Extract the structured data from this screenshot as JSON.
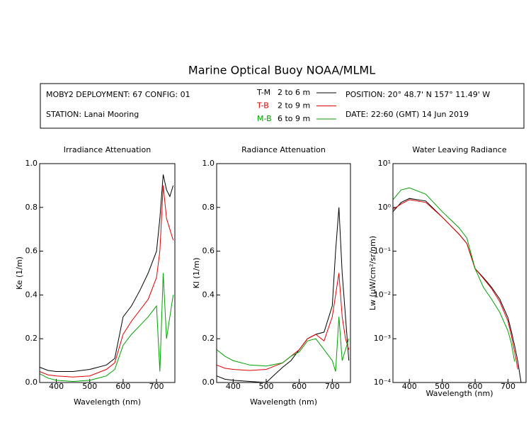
{
  "title": "Marine Optical Buoy NOAA/MLML",
  "header": {
    "deployment": "MOBY2 DEPLOYMENT: 67 CONFIG: 01",
    "station": "STATION: Lanai Mooring",
    "position": "POSITION: 20° 48.7' N   157° 11.49' W",
    "date": "DATE: 22:60 (GMT) 14 Jun 2019",
    "legend_ranges": [
      "2 to 6  m",
      "2 to 9  m",
      "6 to 9  m"
    ]
  },
  "chart_data": [
    {
      "type": "line",
      "title": "Irradiance Attenuation",
      "x_label": "Wavelength (nm)",
      "y_label": "Ke  (1/m)",
      "x": [
        350,
        375,
        400,
        450,
        500,
        550,
        575,
        600,
        625,
        650,
        675,
        700,
        710,
        720,
        730,
        740,
        750
      ],
      "xlim": [
        350,
        755
      ],
      "xticks": [
        400,
        500,
        600,
        700
      ],
      "ylim": [
        0,
        1
      ],
      "yticks": [
        {
          "value": 0,
          "label": "0.0"
        },
        0.2,
        0.4,
        0.6,
        0.8,
        {
          "value": 1,
          "label": "1.0"
        }
      ],
      "series": [
        {
          "name": "T-M",
          "color": "#000000",
          "values": [
            0.07,
            0.055,
            0.05,
            0.05,
            0.06,
            0.08,
            0.11,
            0.3,
            0.35,
            0.42,
            0.5,
            0.6,
            0.75,
            0.95,
            0.88,
            0.85,
            0.9
          ]
        },
        {
          "name": "T-B",
          "color": "#e00000",
          "values": [
            0.05,
            0.035,
            0.03,
            0.025,
            0.03,
            0.06,
            0.09,
            0.22,
            0.28,
            0.33,
            0.38,
            0.48,
            0.6,
            0.9,
            0.75,
            0.7,
            0.65
          ]
        },
        {
          "name": "M-B",
          "color": "#00a000",
          "values": [
            0.04,
            0.02,
            0.01,
            0.005,
            0.01,
            0.03,
            0.06,
            0.17,
            0.22,
            0.26,
            0.3,
            0.35,
            0.05,
            0.5,
            0.2,
            0.3,
            0.4
          ]
        }
      ]
    },
    {
      "type": "line",
      "title": "Radiance Attenuation",
      "x_label": "Wavelength (nm)",
      "y_label": "Kl  (1/m)",
      "x": [
        350,
        375,
        400,
        450,
        500,
        550,
        575,
        600,
        625,
        650,
        675,
        700,
        710,
        720,
        730,
        740,
        750
      ],
      "xlim": [
        350,
        755
      ],
      "xticks": [
        400,
        500,
        600,
        700
      ],
      "ylim": [
        0,
        1
      ],
      "yticks": [
        {
          "value": 0,
          "label": "0.0"
        },
        0.2,
        0.4,
        0.6,
        0.8,
        {
          "value": 1,
          "label": "1.0"
        }
      ],
      "series": [
        {
          "name": "T-M",
          "color": "#000000",
          "values": [
            0.03,
            0.015,
            0.01,
            0.005,
            0,
            0.07,
            0.1,
            0.15,
            0.2,
            0.22,
            0.23,
            0.35,
            0.6,
            0.8,
            0.5,
            0.3,
            0.1
          ]
        },
        {
          "name": "T-B",
          "color": "#e00000",
          "values": [
            0.08,
            0.065,
            0.06,
            0.055,
            0.06,
            0.09,
            0.12,
            0.15,
            0.2,
            0.22,
            0.19,
            0.3,
            0.4,
            0.5,
            0.3,
            0.2,
            0.15
          ]
        },
        {
          "name": "M-B",
          "color": "#00a000",
          "values": [
            0.15,
            0.12,
            0.1,
            0.08,
            0.075,
            0.09,
            0.12,
            0.14,
            0.19,
            0.2,
            0.15,
            0.1,
            0.05,
            0.3,
            0.1,
            0.15,
            0.2
          ]
        }
      ]
    },
    {
      "type": "line",
      "title": "Water Leaving Radiance",
      "x_label": "Wavelength (nm)",
      "y_label": "Lw  (μW/cm²/sr/nm)",
      "x": [
        350,
        375,
        400,
        450,
        500,
        550,
        575,
        600,
        625,
        650,
        675,
        700,
        710,
        720,
        730,
        740,
        750
      ],
      "xlim": [
        350,
        755
      ],
      "xticks": [
        400,
        500,
        600,
        700
      ],
      "log_y": true,
      "ylim": [
        0.0001,
        10
      ],
      "yticks": [
        {
          "value": 10,
          "label": "10¹"
        },
        {
          "value": 1,
          "label": "10⁰"
        },
        {
          "value": 0.1,
          "label": "10⁻¹"
        },
        {
          "value": 0.01,
          "label": "10⁻²"
        },
        {
          "value": 0.001,
          "label": "10⁻³"
        },
        {
          "value": 0.0001,
          "label": "10⁻⁴"
        }
      ],
      "series": [
        {
          "name": "T-M",
          "color": "#000000",
          "values": [
            0.8,
            1.3,
            1.6,
            1.4,
            0.6,
            0.25,
            0.15,
            0.04,
            0.025,
            0.015,
            0.008,
            0.003,
            0.0015,
            0.0007,
            0.0003,
            0.0001,
            null
          ]
        },
        {
          "name": "T-B",
          "color": "#e00000",
          "values": [
            0.9,
            1.2,
            1.5,
            1.3,
            0.6,
            0.25,
            0.15,
            0.04,
            0.024,
            0.014,
            0.007,
            0.0025,
            0.0012,
            0.0005,
            0.0002,
            null,
            null
          ]
        },
        {
          "name": "M-B",
          "color": "#00a000",
          "values": [
            1.5,
            2.5,
            2.8,
            2.0,
            0.8,
            0.35,
            0.2,
            0.04,
            0.015,
            0.008,
            0.004,
            0.0015,
            0.0008,
            0.0003,
            null,
            null,
            null
          ]
        }
      ]
    }
  ]
}
